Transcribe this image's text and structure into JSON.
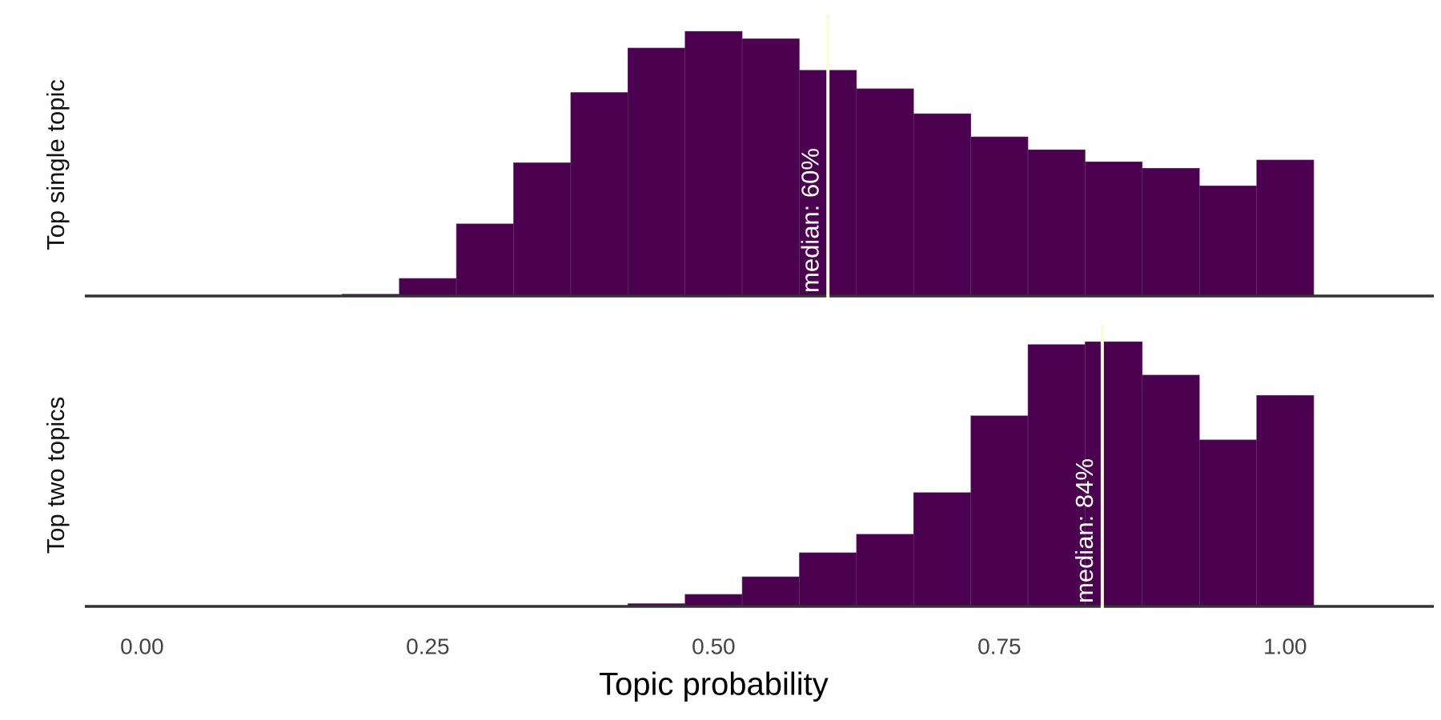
{
  "chart_data": [
    {
      "type": "histogram",
      "ylabel": "Top single topic",
      "color": "#4b0050",
      "median_color": "#fbfbdc",
      "bins": [
        0.175,
        0.225,
        0.275,
        0.325,
        0.375,
        0.425,
        0.475,
        0.525,
        0.575,
        0.625,
        0.675,
        0.725,
        0.775,
        0.825,
        0.875,
        0.925,
        0.975,
        1.025
      ],
      "values": [
        2,
        19,
        78,
        144,
        220,
        268,
        286,
        278,
        244,
        224,
        197,
        172,
        158,
        145,
        138,
        119,
        147
      ],
      "ylim": [
        0,
        300
      ],
      "xlim": [
        -0.05,
        1.13
      ],
      "annotation": {
        "value": 0.6,
        "label": "median: 60%"
      }
    },
    {
      "type": "histogram",
      "ylabel": "Top two topics",
      "color": "#4b0050",
      "median_color": "#fbfbdc",
      "bins": [
        0.175,
        0.225,
        0.275,
        0.325,
        0.375,
        0.425,
        0.475,
        0.525,
        0.575,
        0.625,
        0.675,
        0.725,
        0.775,
        0.825,
        0.875,
        0.925,
        0.975,
        1.025
      ],
      "values": [
        0,
        0,
        0,
        0,
        1,
        3,
        13,
        32,
        58,
        78,
        123,
        206,
        283,
        286,
        250,
        180,
        228
      ],
      "ylim": [
        0,
        300
      ],
      "xlim": [
        -0.05,
        1.13
      ],
      "annotation": {
        "value": 0.84,
        "label": "median: 84%"
      },
      "xlabel": "Topic probability",
      "xticks": [
        {
          "value": 0,
          "label": "0.00"
        },
        {
          "value": 0.25,
          "label": "0.25"
        },
        {
          "value": 0.5,
          "label": "0.50"
        },
        {
          "value": 0.75,
          "label": "0.75"
        },
        {
          "value": 1,
          "label": "1.00"
        }
      ]
    }
  ]
}
